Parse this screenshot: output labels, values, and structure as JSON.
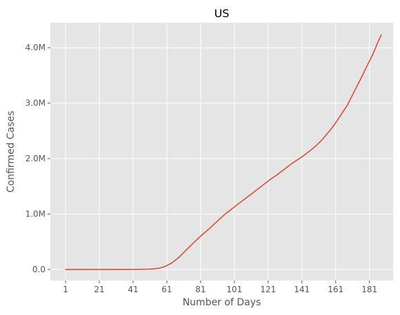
{
  "chart_data": {
    "type": "line",
    "title": "US",
    "xlabel": "Number of Days",
    "ylabel": "Confirmed Cases",
    "xlim": [
      -8,
      195
    ],
    "ylim": [
      -200000,
      4450000
    ],
    "x_ticks": [
      1,
      21,
      41,
      61,
      81,
      101,
      121,
      141,
      161,
      181
    ],
    "x_tick_labels": [
      "1",
      "21",
      "41",
      "61",
      "81",
      "101",
      "121",
      "141",
      "161",
      "181"
    ],
    "y_ticks": [
      0,
      1000000,
      2000000,
      3000000,
      4000000
    ],
    "y_tick_labels": [
      "0.0",
      "1.0M",
      "2.0M",
      "3.0M",
      "4.0M"
    ],
    "grid": true,
    "style": "ggplot",
    "colors": {
      "background": "#E5E5E5",
      "grid": "#FFFFFF",
      "line": "#E24A33",
      "tick_text": "#555555"
    },
    "series": [
      {
        "x": [
          1,
          10,
          20,
          30,
          40,
          45,
          50,
          53,
          56,
          58,
          60,
          62,
          64,
          66,
          68,
          70,
          72,
          75,
          78,
          81,
          84,
          87,
          90,
          93,
          96,
          99,
          102,
          105,
          108,
          111,
          114,
          117,
          120,
          123,
          126,
          129,
          132,
          135,
          138,
          141,
          144,
          147,
          150,
          153,
          156,
          159,
          162,
          165,
          168,
          171,
          174,
          177,
          180,
          183,
          186,
          188
        ],
        "y": [
          0,
          0,
          0,
          0,
          1000,
          2000,
          5000,
          10000,
          20000,
          35000,
          55000,
          85000,
          120000,
          165000,
          215000,
          275000,
          335000,
          425000,
          515000,
          600000,
          680000,
          760000,
          845000,
          930000,
          1010000,
          1080000,
          1150000,
          1220000,
          1290000,
          1360000,
          1430000,
          1500000,
          1570000,
          1640000,
          1700000,
          1770000,
          1840000,
          1910000,
          1970000,
          2030000,
          2100000,
          2170000,
          2250000,
          2340000,
          2450000,
          2560000,
          2690000,
          2830000,
          2970000,
          3150000,
          3330000,
          3510000,
          3700000,
          3880000,
          4100000,
          4230000
        ]
      }
    ]
  }
}
